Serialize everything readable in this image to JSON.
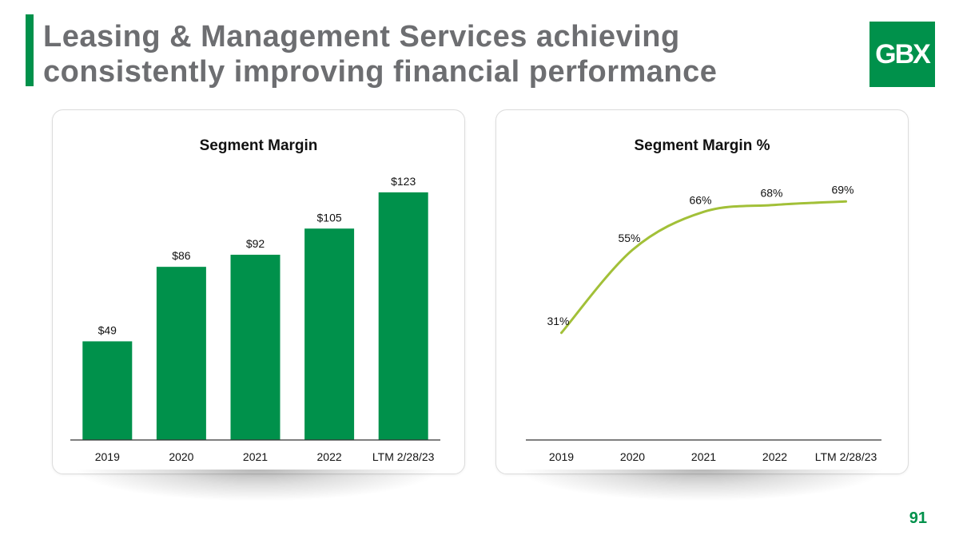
{
  "header": {
    "title_line1": "Leasing & Management Services achieving",
    "title_line2": "consistently improving financial performance",
    "logo_text": "GBX"
  },
  "page_number": "91",
  "colors": {
    "brand_green": "#00914B",
    "line_green": "#a2c038",
    "title_gray": "#6d6e71"
  },
  "chart_data": [
    {
      "type": "bar",
      "title": "Segment Margin",
      "categories": [
        "2019",
        "2020",
        "2021",
        "2022",
        "LTM 2/28/23"
      ],
      "values": [
        49,
        86,
        92,
        105,
        123
      ],
      "labels": [
        "$49",
        "$86",
        "$92",
        "$105",
        "$123"
      ],
      "xlabel": "",
      "ylabel": "",
      "ylim": [
        0,
        140
      ]
    },
    {
      "type": "line",
      "title": "Segment Margin %",
      "categories": [
        "2019",
        "2020",
        "2021",
        "2022",
        "LTM 2/28/23"
      ],
      "values": [
        31,
        55,
        66,
        68,
        69
      ],
      "labels": [
        "31%",
        "55%",
        "66%",
        "68%",
        "69%"
      ],
      "xlabel": "",
      "ylabel": "",
      "ylim": [
        0,
        85
      ]
    }
  ]
}
